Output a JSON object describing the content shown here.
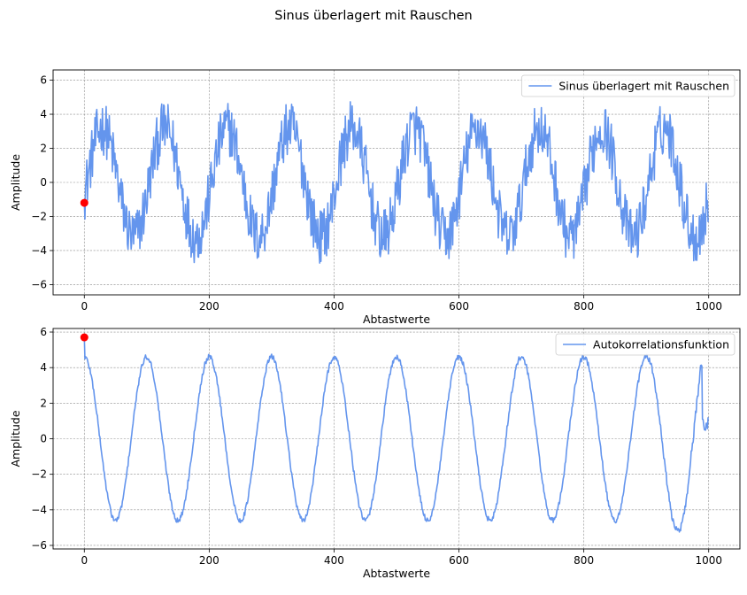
{
  "figure": {
    "suptitle": "Sinus überlagert mit Rauschen"
  },
  "chart_data": [
    {
      "type": "line",
      "series": [
        {
          "name": "Sinus überlagert mit Rauschen",
          "color": "#6495ED",
          "description": "sine with period 100 samples, amplitude 3.2, plus uniform noise ±1.6"
        }
      ],
      "x_range": [
        0,
        1000
      ],
      "x_samples": 1000,
      "period": 100,
      "amplitude": 3.2,
      "noise": 1.6,
      "marker": {
        "x": 0,
        "y": -1.2,
        "color": "#ff0000"
      },
      "xlabel": "Abtastwerte",
      "ylabel": "Amplitude",
      "xlim": [
        -50,
        1050
      ],
      "ylim": [
        -6.6,
        6.6
      ],
      "xticks": [
        0,
        200,
        400,
        600,
        800,
        1000
      ],
      "yticks": [
        -6,
        -4,
        -2,
        0,
        2,
        4,
        6
      ],
      "grid": true,
      "legend": "upper right"
    },
    {
      "type": "line",
      "series": [
        {
          "name": "Autokorrelationsfunktion",
          "color": "#6495ED",
          "description": "cosine with period 100, amplitude 4.6, small noise, decaying tail near 1000"
        }
      ],
      "x_range": [
        0,
        1000
      ],
      "x_samples": 1000,
      "period": 100,
      "amplitude": 4.6,
      "noise": 0.15,
      "marker": {
        "x": 0,
        "y": 5.7,
        "color": "#ff0000"
      },
      "xlabel": "Abtastwerte",
      "ylabel": "Amplitude",
      "xlim": [
        -50,
        1050
      ],
      "ylim": [
        -6.2,
        6.2
      ],
      "xticks": [
        0,
        200,
        400,
        600,
        800,
        1000
      ],
      "yticks": [
        -6,
        -4,
        -2,
        0,
        2,
        4,
        6
      ],
      "grid": true,
      "legend": "upper right"
    }
  ]
}
